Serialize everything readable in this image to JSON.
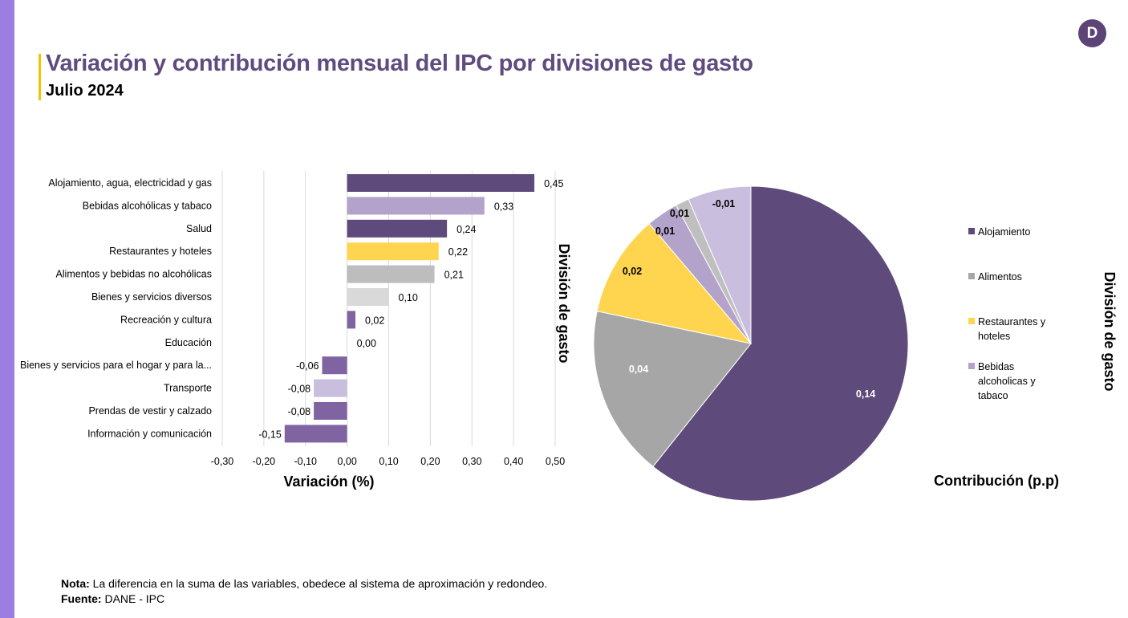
{
  "header": {
    "title": "Variación  y contribución mensual del IPC por divisiones de gasto",
    "subtitle": "Julio 2024",
    "logo_letter": "D"
  },
  "chart_data": [
    {
      "type": "bar",
      "orientation": "horizontal",
      "categories": [
        "Alojamiento, agua, electricidad y gas",
        "Bebidas alcohólicas y tabaco",
        "Salud",
        "Restaurantes y hoteles",
        "Alimentos y bebidas no alcohólicas",
        "Bienes y servicios diversos",
        "Recreación y cultura",
        "Educación",
        "Bienes y servicios para el hogar y para la...",
        "Transporte",
        "Prendas de vestir y calzado",
        "Información y comunicación"
      ],
      "values": [
        0.45,
        0.33,
        0.24,
        0.22,
        0.21,
        0.1,
        0.02,
        0.0,
        -0.06,
        -0.08,
        -0.08,
        -0.15
      ],
      "data_labels": [
        "0,45",
        "0,33",
        "0,24",
        "0,22",
        "0,21",
        "0,10",
        "0,02",
        "0,00",
        "-0,06",
        "-0,08",
        "-0,08",
        "-0,15"
      ],
      "colors": [
        "#5f4b7b",
        "#b3a2c9",
        "#5f4b7b",
        "#ffd54f",
        "#bdbdbd",
        "#d9d9d9",
        "#8064a2",
        "#8064a2",
        "#8064a2",
        "#c9bedd",
        "#8064a2",
        "#8064a2"
      ],
      "xlim": [
        -0.3,
        0.5
      ],
      "xticks": [
        "-0,30",
        "-0,20",
        "-0,10",
        "0,00",
        "0,10",
        "0,20",
        "0,30",
        "0,40",
        "0,50"
      ],
      "xlabel": "Variación (%)",
      "ylabel": "División de gasto",
      "grid": "vertical"
    },
    {
      "type": "pie",
      "slices": [
        {
          "label": "0,14",
          "value": 0.14,
          "share_pct": 60.7,
          "color": "#5f4b7b",
          "text_color": "#ffffff"
        },
        {
          "label": "0,04",
          "value": 0.04,
          "share_pct": 17.6,
          "color": "#a6a6a6",
          "text_color": "#ffffff"
        },
        {
          "label": "0,02",
          "value": 0.02,
          "share_pct": 10.5,
          "color": "#ffd54f",
          "text_color": "#000000"
        },
        {
          "label": "0,01",
          "value": 0.01,
          "share_pct": 3.3,
          "color": "#b3a2c9",
          "text_color": "#000000"
        },
        {
          "label": "0,01",
          "value": 0.01,
          "share_pct": 1.4,
          "color": "#bfbfbf",
          "text_color": "#000000"
        },
        {
          "label": "-0,01",
          "value": -0.01,
          "share_pct": 6.5,
          "color": "#c9bedd",
          "text_color": "#000000"
        }
      ],
      "legend": [
        "Alojamiento",
        "Alimentos",
        "Restaurantes y hoteles",
        "Bebidas alcoholicas y tabaco"
      ],
      "legend_colors": [
        "#5f4b7b",
        "#a6a6a6",
        "#ffd54f",
        "#b3a2c9"
      ],
      "legend_position": "right",
      "xlabel": "Contribución (p.p)",
      "ylabel": "División de gasto"
    }
  ],
  "footer": {
    "note_label": "Nota:",
    "note_text": " La diferencia en la suma de las variables, obedece al sistema de aproximación y redondeo.",
    "source_label": "Fuente:",
    "source_text": " DANE - IPC"
  }
}
